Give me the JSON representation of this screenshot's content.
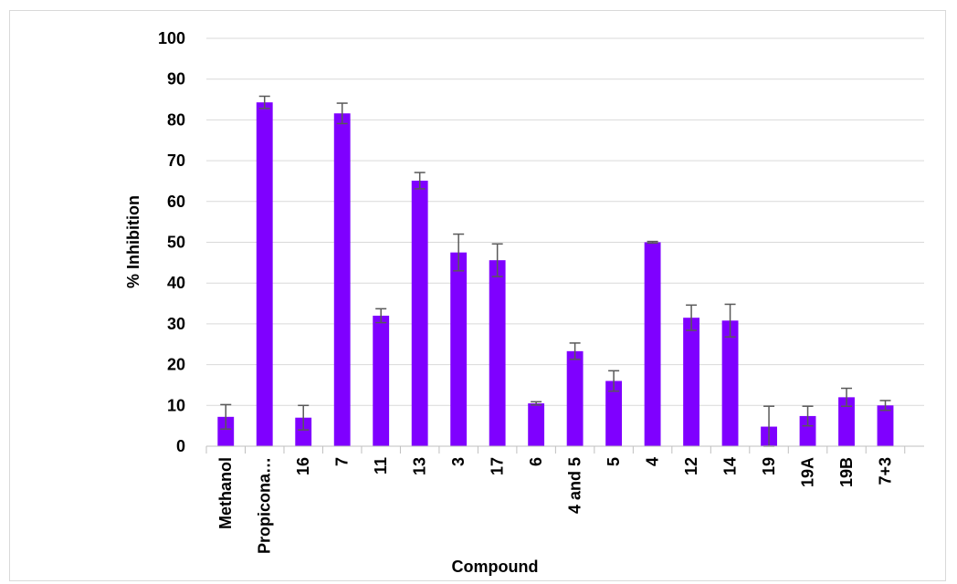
{
  "chart_data": {
    "type": "bar",
    "title": "",
    "xlabel": "Compound",
    "ylabel": "% Inhibition",
    "ylim": [
      0,
      100
    ],
    "yticks": [
      0,
      10,
      20,
      30,
      40,
      50,
      60,
      70,
      80,
      90,
      100
    ],
    "grid": true,
    "legend": "none",
    "bar_color": "#7F00FF",
    "error_bar_color": "#595959",
    "categories": [
      "Methanol",
      "Propicona…",
      "16",
      "7",
      "11",
      "13",
      "3",
      "17",
      "6",
      "4 and 5",
      "5",
      "4",
      "12",
      "14",
      "19",
      "19A",
      "19B",
      "7+3"
    ],
    "values": [
      7.2,
      84.3,
      7.0,
      81.6,
      32.0,
      65.1,
      47.5,
      45.6,
      10.5,
      23.3,
      16.0,
      50.0,
      31.5,
      30.8,
      4.8,
      7.4,
      12.0,
      10.0
    ],
    "errors": [
      3.0,
      1.5,
      3.0,
      2.5,
      1.7,
      2.0,
      4.5,
      4.0,
      0.4,
      2.0,
      2.5,
      0.2,
      3.1,
      4.0,
      5.0,
      2.4,
      2.2,
      1.2
    ]
  }
}
